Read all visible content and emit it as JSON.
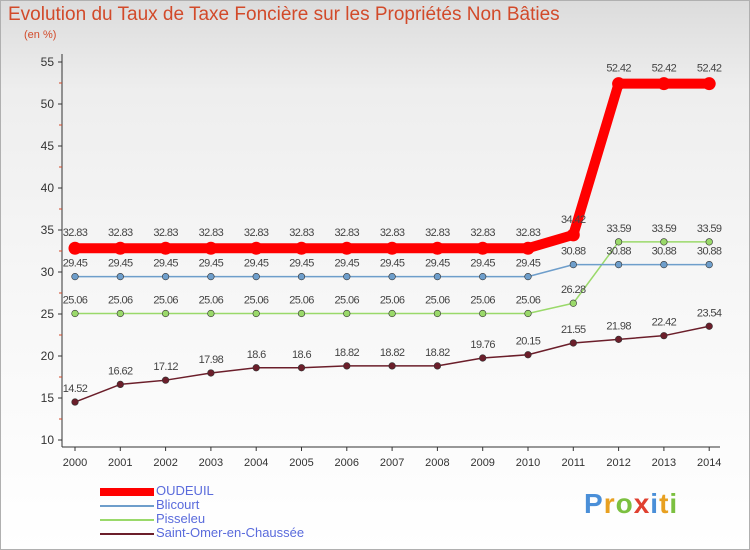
{
  "colors": {
    "title": "#d24a2a",
    "legend_text": "#5a6bdc",
    "axis": "#333333",
    "grid": "#dddddd"
  },
  "logo": {
    "letters": [
      {
        "ch": "P",
        "color": "#4a8fd8"
      },
      {
        "ch": "r",
        "color": "#e8a020"
      },
      {
        "ch": "o",
        "color": "#7cc040"
      },
      {
        "ch": "x",
        "color": "#e04030"
      },
      {
        "ch": "i",
        "color": "#4a8fd8"
      },
      {
        "ch": "t",
        "color": "#e8a020"
      },
      {
        "ch": "i",
        "color": "#7cc040"
      }
    ]
  },
  "chart_data": {
    "type": "line",
    "title": "Evolution du Taux de Taxe Foncière sur les Propriétés Non Bâties",
    "ylabel": "(en %)",
    "xlabel": "",
    "ylim": [
      10,
      55
    ],
    "yticks": [
      10,
      15,
      20,
      25,
      30,
      35,
      40,
      45,
      50,
      55
    ],
    "grid": false,
    "legend_position": "bottom-left",
    "categories": [
      "2000",
      "2001",
      "2002",
      "2003",
      "2004",
      "2005",
      "2006",
      "2007",
      "2008",
      "2009",
      "2010",
      "2011",
      "2012",
      "2013",
      "2014"
    ],
    "series": [
      {
        "name": "OUDEUIL",
        "color": "#ff0000",
        "values": [
          32.83,
          32.83,
          32.83,
          32.83,
          32.83,
          32.83,
          32.83,
          32.83,
          32.83,
          32.83,
          32.83,
          34.42,
          52.42,
          52.42,
          52.42
        ],
        "labels": [
          "32.83",
          "32.83",
          "32.83",
          "32.83",
          "32.83",
          "32.83",
          "32.83",
          "32.83",
          "32.83",
          "32.83",
          "32.83",
          "34.42",
          "52.42",
          "52.42",
          "52.42"
        ]
      },
      {
        "name": "Blicourt",
        "color": "#6e9ecb",
        "values": [
          29.45,
          29.45,
          29.45,
          29.45,
          29.45,
          29.45,
          29.45,
          29.45,
          29.45,
          29.45,
          29.45,
          30.88,
          30.88,
          30.88,
          30.88
        ],
        "labels": [
          "29.45",
          "29.45",
          "29.45",
          "29.45",
          "29.45",
          "29.45",
          "29.45",
          "29.45",
          "29.45",
          "29.45",
          "29.45",
          "30.88",
          "30.88",
          "30.88",
          "30.88"
        ]
      },
      {
        "name": "Pisseleu",
        "color": "#9ad96a",
        "values": [
          25.06,
          25.06,
          25.06,
          25.06,
          25.06,
          25.06,
          25.06,
          25.06,
          25.06,
          25.06,
          25.06,
          26.28,
          33.59,
          33.59,
          33.59
        ],
        "labels": [
          "25.06",
          "25.06",
          "25.06",
          "25.06",
          "25.06",
          "25.06",
          "25.06",
          "25.06",
          "25.06",
          "25.06",
          "25.06",
          "26.28",
          "33.59",
          "33.59",
          "33.59"
        ]
      },
      {
        "name": "Saint-Omer-en-Chaussée",
        "color": "#6b1e2a",
        "values": [
          14.52,
          16.62,
          17.12,
          17.98,
          18.6,
          18.6,
          18.82,
          18.82,
          18.82,
          19.76,
          20.15,
          21.55,
          21.98,
          22.42,
          23.54
        ],
        "labels": [
          "14.52",
          "16.62",
          "17.12",
          "17.98",
          "18.6",
          "18.6",
          "18.82",
          "18.82",
          "18.82",
          "19.76",
          "20.15",
          "21.55",
          "21.98",
          "22.42",
          "23.54"
        ]
      }
    ]
  }
}
